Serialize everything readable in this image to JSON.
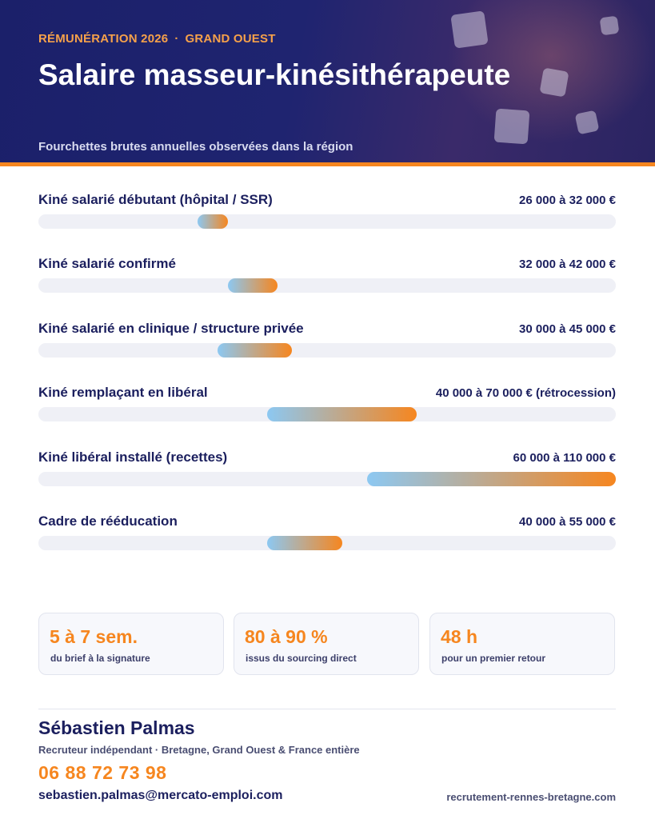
{
  "header": {
    "kicker_left": "RÉMUNÉRATION 2026",
    "kicker_sep": "·",
    "kicker_right": "GRAND OUEST",
    "title": "Salaire masseur-kinésithérapeute",
    "subtitle": "Fourchettes brutes annuelles observées dans la région"
  },
  "chart_data": {
    "type": "range-bar",
    "rows": [
      {
        "label": "Kiné salarié débutant (hôpital / SSR)",
        "range_text": "26 000 à 32 000 €",
        "min": 26000,
        "max": 32000
      },
      {
        "label": "Kiné salarié confirmé",
        "range_text": "32 000 à 42 000 €",
        "min": 32000,
        "max": 42000
      },
      {
        "label": "Kiné salarié en clinique / structure privée",
        "range_text": "30 000 à 45 000 €",
        "min": 30000,
        "max": 45000
      },
      {
        "label": "Kiné remplaçant en libéral",
        "range_text": "40 000 à 70 000 € (rétrocession)",
        "min": 40000,
        "max": 70000
      },
      {
        "label": "Kiné libéral installé (recettes)",
        "range_text": "60 000 à 110 000 €",
        "min": 60000,
        "max": 110000
      },
      {
        "label": "Cadre de rééducation",
        "range_text": "40 000 à 55 000 €",
        "min": 40000,
        "max": 55000
      }
    ],
    "scale": [
      -6000,
      110000
    ],
    "gradient_colors": [
      "#8cc8f2",
      "#f6861f"
    ]
  },
  "stats": [
    {
      "value": "5 à 7 sem.",
      "caption": "du brief à la signature"
    },
    {
      "value": "80 à 90 %",
      "caption": "issus du sourcing direct"
    },
    {
      "value": "48 h",
      "caption": "pour un premier retour"
    }
  ],
  "contact": {
    "name": "Sébastien Palmas",
    "role": "Recruteur indépendant · Bretagne, Grand Ouest & France entière",
    "phone": "06 88 72 73 98",
    "email": "sebastien.palmas@mercato-emploi.com",
    "website": "recrutement-rennes-bretagne.com"
  },
  "colors": {
    "navy": "#1b1f5e",
    "accent": "#f6861f",
    "header_bg": "#1f2470"
  }
}
